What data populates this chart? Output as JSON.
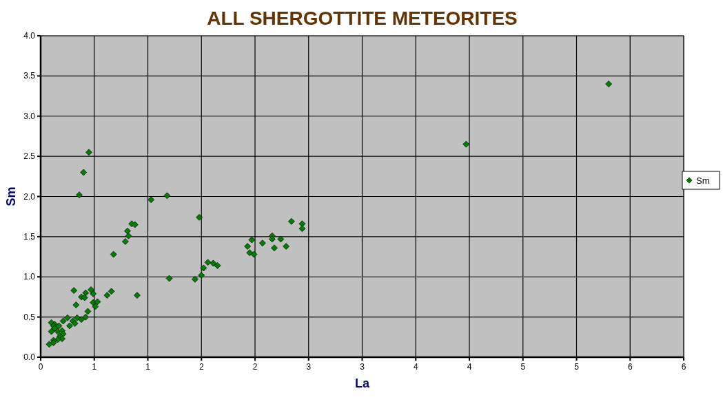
{
  "chart_data": {
    "type": "scatter",
    "title": "ALL SHERGOTTITE METEORITES",
    "xlabel": "La",
    "ylabel": "Sm",
    "xlim": [
      0,
      6
    ],
    "ylim": [
      0,
      4
    ],
    "xticks": [
      0,
      {
        "value": 0.5,
        "label": "1"
      },
      1,
      {
        "value": 1.5,
        "label": "2"
      },
      2,
      {
        "value": 2.5,
        "label": "3"
      },
      3,
      {
        "value": 3.5,
        "label": "4"
      },
      4,
      {
        "value": 4.5,
        "label": "5"
      },
      5,
      {
        "value": 5.5,
        "label": "6"
      },
      6
    ],
    "yticks": [
      {
        "value": 0,
        "label": "0.0"
      },
      {
        "value": 0.5,
        "label": "0.5"
      },
      {
        "value": 1,
        "label": "1.0"
      },
      {
        "value": 1.5,
        "label": "1.5"
      },
      {
        "value": 2,
        "label": "2.0"
      },
      {
        "value": 2.5,
        "label": "2.5"
      },
      {
        "value": 3,
        "label": "3.0"
      },
      {
        "value": 3.5,
        "label": "3.5"
      },
      {
        "value": 4,
        "label": "4.0"
      }
    ],
    "grid": true,
    "legend": "right",
    "marker": "diamond",
    "series": [
      {
        "name": "Sm",
        "color": "#008000",
        "x": [
          5.3,
          3.97,
          0.45,
          0.4,
          0.36,
          1.03,
          1.18,
          1.48,
          0.81,
          0.82,
          0.79,
          0.68,
          0.85,
          0.88,
          1.2,
          1.44,
          1.5,
          1.52,
          1.56,
          1.61,
          1.65,
          0.9,
          2.34,
          2.44,
          2.44,
          1.97,
          2.16,
          2.16,
          2.24,
          2.07,
          1.93,
          2.29,
          2.18,
          1.95,
          1.99,
          0.31,
          0.47,
          0.49,
          0.42,
          0.38,
          0.41,
          0.62,
          0.66,
          0.33,
          0.49,
          0.53,
          0.51,
          0.44,
          0.25,
          0.21,
          0.3,
          0.34,
          0.38,
          0.42,
          0.32,
          0.27,
          0.1,
          0.13,
          0.12,
          0.17,
          0.13,
          0.1,
          0.16,
          0.2,
          0.21,
          0.18,
          0.2,
          0.16,
          0.12,
          0.12,
          0.08
        ],
        "values": [
          3.4,
          2.65,
          2.55,
          2.3,
          2.02,
          1.96,
          2.01,
          1.74,
          1.57,
          1.51,
          1.44,
          1.28,
          1.66,
          1.65,
          0.98,
          0.97,
          1.02,
          1.11,
          1.18,
          1.17,
          1.14,
          0.77,
          1.69,
          1.66,
          1.6,
          1.46,
          1.51,
          1.47,
          1.47,
          1.42,
          1.38,
          1.38,
          1.36,
          1.3,
          1.28,
          0.83,
          0.84,
          0.79,
          0.8,
          0.75,
          0.74,
          0.77,
          0.82,
          0.65,
          0.68,
          0.69,
          0.63,
          0.57,
          0.49,
          0.45,
          0.45,
          0.49,
          0.47,
          0.5,
          0.42,
          0.39,
          0.43,
          0.41,
          0.39,
          0.39,
          0.36,
          0.32,
          0.32,
          0.33,
          0.29,
          0.26,
          0.23,
          0.22,
          0.21,
          0.18,
          0.16
        ]
      }
    ]
  }
}
